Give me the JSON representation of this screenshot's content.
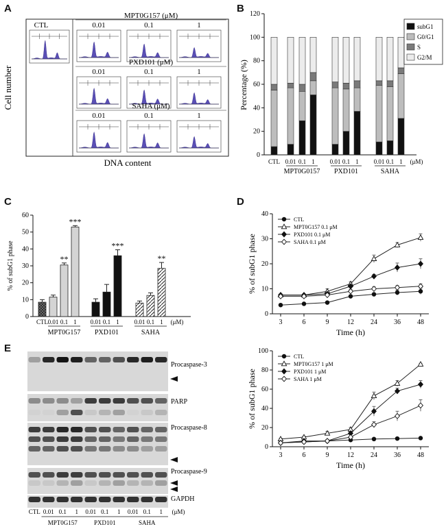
{
  "panels": {
    "A": "A",
    "B": "B",
    "C": "C",
    "D": "D",
    "E": "E"
  },
  "panel_a": {
    "ylabel": "Cell number",
    "xlabel": "DNA content",
    "ctl_label": "CTL",
    "groups": [
      {
        "title": "MPT0G157 (μM)",
        "doses": [
          "0.01",
          "0.1",
          "1"
        ]
      },
      {
        "title": "PXD101 (μM)",
        "doses": [
          "0.01",
          "0.1",
          "1"
        ]
      },
      {
        "title": "SAHA (μM)",
        "doses": [
          "0.01",
          "0.1",
          "1"
        ]
      }
    ]
  },
  "panel_e": {
    "bands": [
      "Procaspase-3",
      "PARP",
      "Procaspase-8",
      "Procaspase-9",
      "GAPDH"
    ],
    "lanes": [
      "CTL",
      "0.01",
      "0.1",
      "1",
      "0.01",
      "0.1",
      "1",
      "0.01",
      "0.1",
      "1"
    ],
    "unit": "(μM)",
    "groups": [
      "MPT0G157",
      "PXD101",
      "SAHA"
    ]
  },
  "chart_data": [
    {
      "id": "B",
      "type": "bar",
      "stacked": true,
      "ylabel": "Percentage (%)",
      "ylim": [
        0,
        120
      ],
      "yticks": [
        0,
        20,
        40,
        60,
        80,
        100,
        120
      ],
      "categories": [
        "CTL",
        "0.01",
        "0.1",
        "1",
        "0.01",
        "0.1",
        "1",
        "0.01",
        "0.1",
        "1"
      ],
      "tick_labels": [
        "CTL",
        "0.01",
        "0.1",
        "1",
        "0.01",
        "0.1",
        "1",
        "0.01",
        "0.1",
        "1"
      ],
      "unit_label": "(μM)",
      "group_labels": [
        "MPT0G0157",
        "PXD101",
        "SAHA"
      ],
      "series": [
        {
          "name": "subG1",
          "color": "#111111",
          "values": [
            7,
            9,
            29,
            51,
            9,
            20,
            37,
            11,
            12,
            31
          ]
        },
        {
          "name": "G0/G1",
          "color": "#bdbdbd",
          "values": [
            48,
            48,
            25,
            12,
            48,
            36,
            20,
            48,
            46,
            38
          ]
        },
        {
          "name": "S",
          "color": "#7a7a7a",
          "values": [
            5,
            4,
            6,
            7,
            5,
            5,
            6,
            4,
            5,
            5
          ]
        },
        {
          "name": "G2/M",
          "color": "#ececec",
          "values": [
            40,
            39,
            40,
            30,
            38,
            39,
            37,
            37,
            37,
            26
          ]
        }
      ]
    },
    {
      "id": "C",
      "type": "bar",
      "ylabel": "% of subG1 phase",
      "ylim": [
        0,
        60
      ],
      "yticks": [
        0,
        10,
        20,
        30,
        40,
        50,
        60
      ],
      "categories": [
        "CTL",
        "0.01",
        "0.1",
        "1",
        "0.01",
        "0.1",
        "1",
        "0.01",
        "0.1",
        "1"
      ],
      "tick_labels": [
        "CTL",
        "0.01",
        "0.1",
        "1",
        "0.01",
        "0.1",
        "1",
        "0.01",
        "0.1",
        "1"
      ],
      "unit_label": "(μM)",
      "group_labels": [
        "MPT0G157",
        "PXD101",
        "SAHA"
      ],
      "values": [
        8.5,
        11.5,
        30.5,
        53,
        8.5,
        14.5,
        36,
        8,
        12.5,
        28.5
      ],
      "errors": [
        1.5,
        1.2,
        1.2,
        0.8,
        2,
        4.5,
        3.5,
        1.2,
        1.5,
        3.5
      ],
      "annotations": [
        "",
        "",
        "**",
        "***",
        "",
        "",
        "***",
        "",
        "",
        "**"
      ]
    },
    {
      "id": "D",
      "type": "line",
      "xlabel": "Time (h)",
      "ylabel": "% of subG1 phase",
      "ylim": [
        0,
        40
      ],
      "yticks": [
        0,
        10,
        20,
        30,
        40
      ],
      "x": [
        "3",
        "6",
        "9",
        "12",
        "24",
        "36",
        "48"
      ],
      "series": [
        {
          "name": "CTL",
          "marker": "filled-circle",
          "values": [
            3.5,
            4,
            4.5,
            7,
            7.8,
            8.5,
            9
          ],
          "errors": [
            0.3,
            0.3,
            0.3,
            0.5,
            0.5,
            1,
            1.2
          ]
        },
        {
          "name": "MPT0G157 0.1 μM",
          "marker": "open-triangle",
          "values": [
            7.5,
            7.5,
            9,
            12,
            22,
            27.5,
            30.5
          ],
          "errors": [
            0.5,
            0.5,
            1,
            0.8,
            1.5,
            1,
            1.5
          ]
        },
        {
          "name": "PXD101 0.1 μM",
          "marker": "filled-diamond",
          "values": [
            7.5,
            7.5,
            8,
            11,
            15,
            18.5,
            20
          ],
          "errors": [
            0.5,
            0.5,
            0.5,
            0.8,
            0.8,
            1.8,
            2
          ]
        },
        {
          "name": "SAHA 0.1 μM",
          "marker": "open-diamond",
          "values": [
            7,
            7,
            7.5,
            9,
            10,
            10.5,
            11
          ],
          "errors": [
            0.5,
            0.5,
            0.5,
            0.8,
            0.8,
            0.8,
            1
          ]
        }
      ]
    },
    {
      "id": "E-right",
      "type": "line",
      "xlabel": "Time (h)",
      "ylabel": "% of subG1 phase",
      "ylim": [
        0,
        100
      ],
      "yticks": [
        0,
        20,
        40,
        60,
        80,
        100
      ],
      "x": [
        "3",
        "6",
        "9",
        "12",
        "24",
        "36",
        "48"
      ],
      "series": [
        {
          "name": "CTL",
          "marker": "filled-circle",
          "values": [
            4,
            5,
            6,
            7,
            8,
            8.5,
            9
          ],
          "errors": [
            0.5,
            0.5,
            0.5,
            0.5,
            0.5,
            0.5,
            0.5
          ]
        },
        {
          "name": "MPT0G157 1 μM",
          "marker": "open-triangle",
          "values": [
            8,
            10,
            14,
            18,
            53,
            66,
            86
          ],
          "errors": [
            1,
            1,
            2,
            2,
            4,
            3,
            1
          ]
        },
        {
          "name": "PXD101 1 μM",
          "marker": "filled-diamond",
          "values": [
            4,
            6,
            6,
            14,
            37,
            58,
            65
          ],
          "errors": [
            0.5,
            0.5,
            1,
            1.5,
            5,
            3,
            4
          ]
        },
        {
          "name": "SAHA 1 μM",
          "marker": "open-diamond",
          "values": [
            4,
            5,
            6,
            10,
            23,
            32,
            43
          ],
          "errors": [
            0.5,
            0.5,
            1,
            1,
            3,
            5,
            6
          ]
        }
      ]
    }
  ]
}
